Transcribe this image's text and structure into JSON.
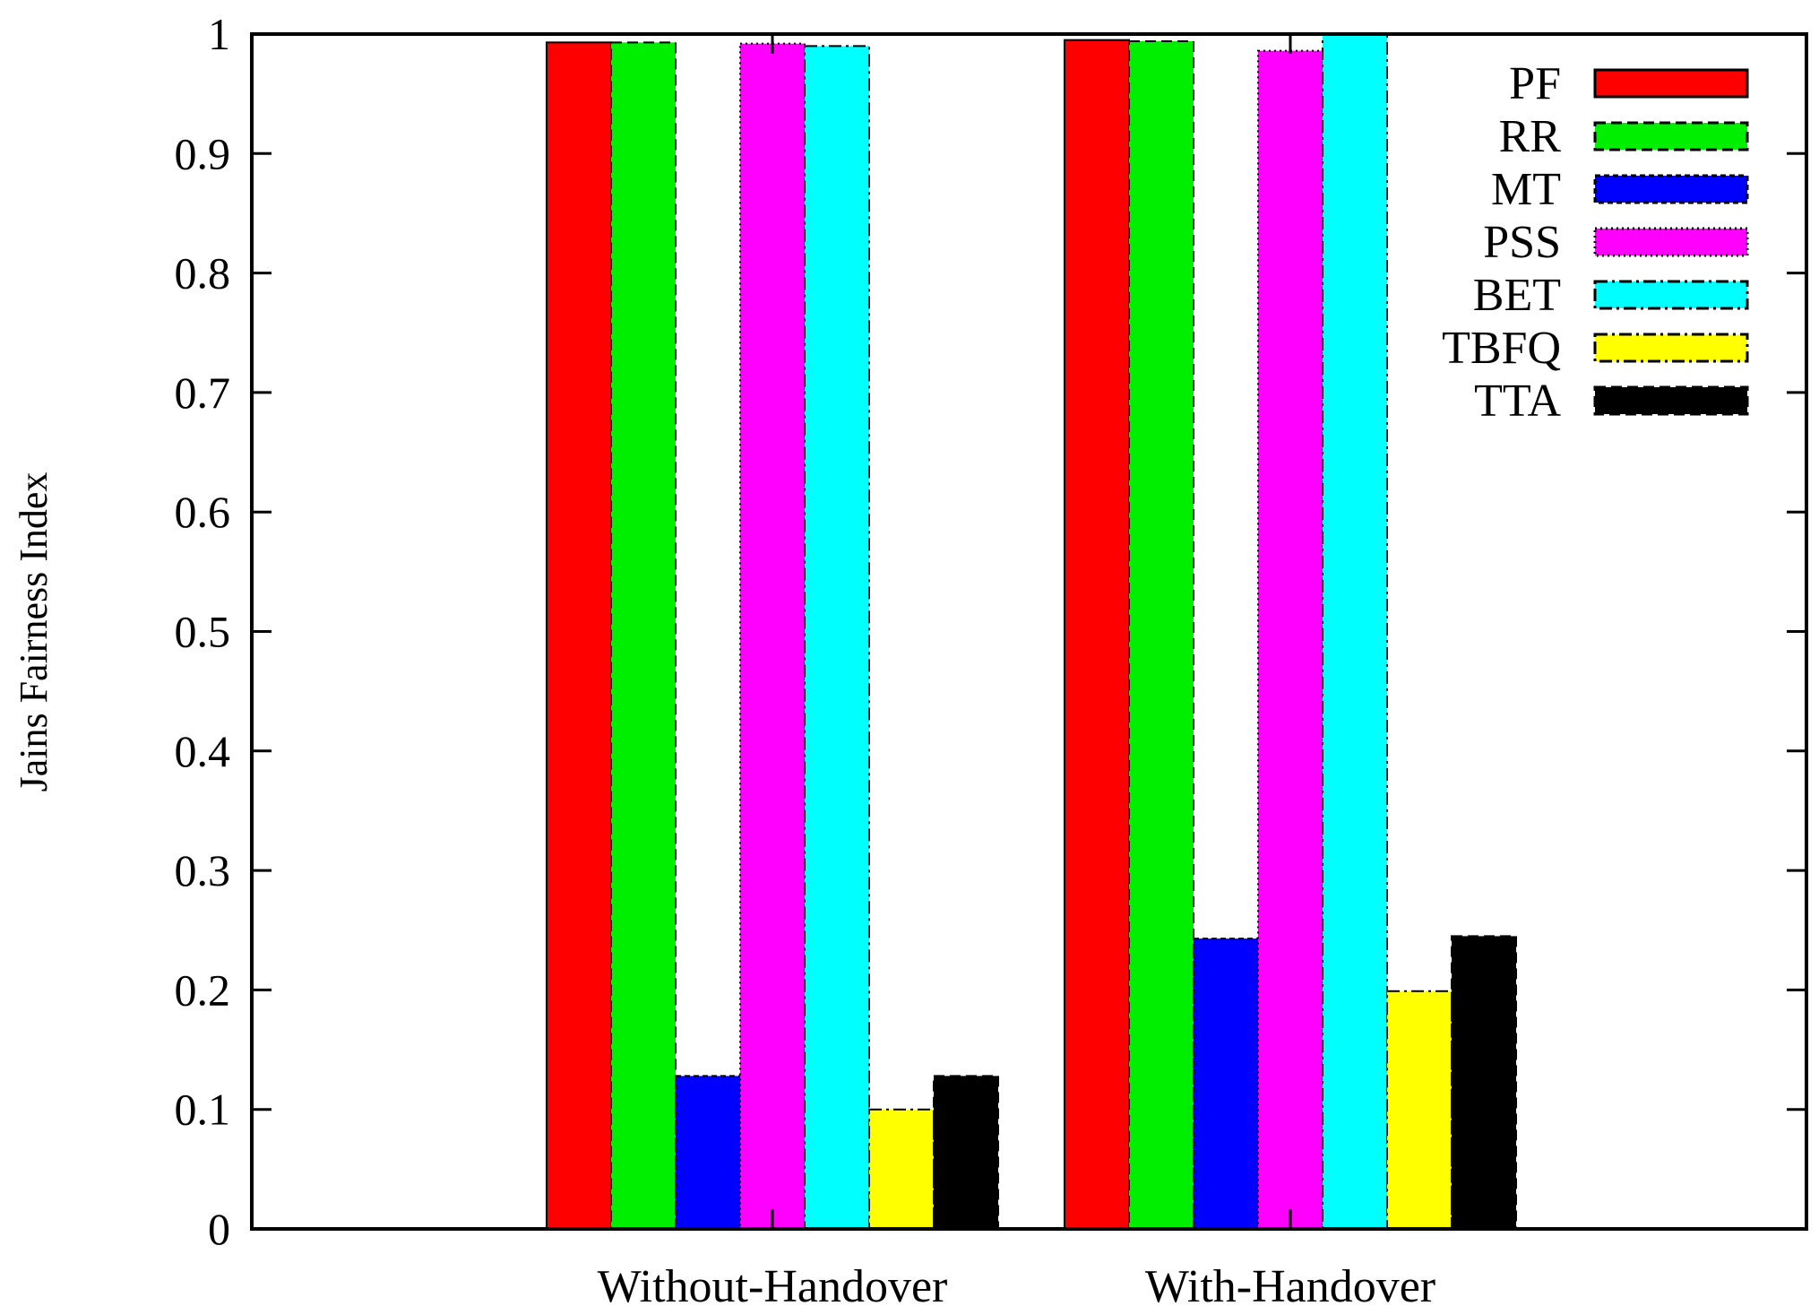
{
  "chart_data": {
    "type": "bar",
    "title": "",
    "xlabel": "",
    "ylabel": "Jains Fairness Index",
    "ylim": [
      0,
      1
    ],
    "yticks": [
      "0",
      "0.1",
      "0.2",
      "0.3",
      "0.4",
      "0.5",
      "0.6",
      "0.7",
      "0.8",
      "0.9",
      "1"
    ],
    "categories": [
      "Without-Handover",
      "With-Handover"
    ],
    "grid": false,
    "legend_position": "top-right",
    "series": [
      {
        "name": "PF",
        "color": "#ff0000",
        "dash": "solid",
        "values": [
          0.993,
          0.995
        ]
      },
      {
        "name": "RR",
        "color": "#00ee00",
        "dash": "dashed",
        "values": [
          0.993,
          0.994
        ]
      },
      {
        "name": "MT",
        "color": "#0000ff",
        "dash": "short-dash",
        "values": [
          0.128,
          0.243
        ]
      },
      {
        "name": "PSS",
        "color": "#ff00ff",
        "dash": "dotted",
        "values": [
          0.992,
          0.986
        ]
      },
      {
        "name": "BET",
        "color": "#00ffff",
        "dash": "dash-dot",
        "values": [
          0.99,
          1.0
        ]
      },
      {
        "name": "TBFQ",
        "color": "#ffff00",
        "dash": "dash-dot",
        "values": [
          0.1,
          0.199
        ]
      },
      {
        "name": "TTA",
        "color": "#000000",
        "dash": "dashed",
        "values": [
          0.128,
          0.245
        ]
      }
    ]
  }
}
